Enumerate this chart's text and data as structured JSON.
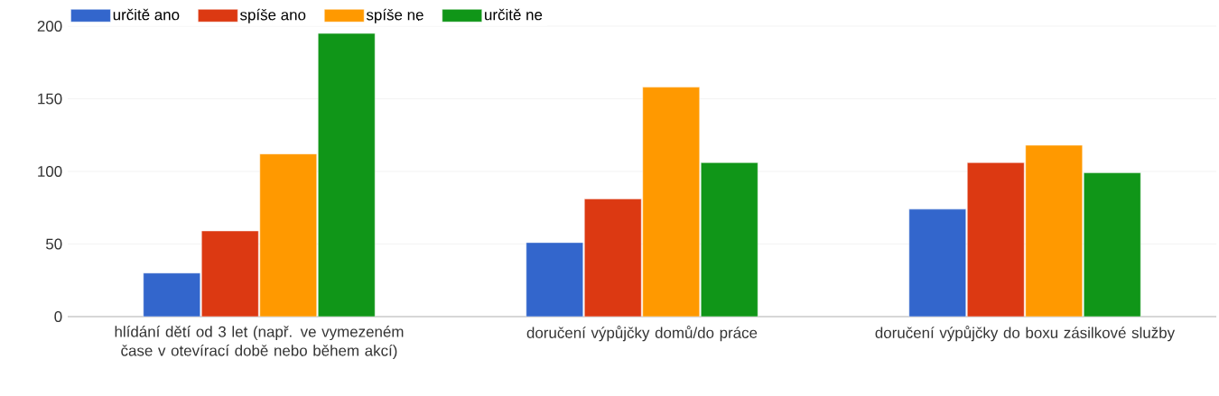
{
  "chart_data": {
    "type": "bar",
    "categories": [
      "hlídání dětí od 3 let (např. ve vymezeném čase v otevírací době nebo během akcí)",
      "doručení výpůjčky domů/do práce",
      "doručení výpůjčky do boxu zásilkové služby"
    ],
    "series": [
      {
        "name": "určitě ano",
        "color": "#3366cc",
        "values": [
          30,
          51,
          74
        ]
      },
      {
        "name": "spíše ano",
        "color": "#dc3912",
        "values": [
          59,
          81,
          106
        ]
      },
      {
        "name": "spíše ne",
        "color": "#ff9900",
        "values": [
          112,
          158,
          118
        ]
      },
      {
        "name": "určitě ne",
        "color": "#109618",
        "values": [
          195,
          106,
          99
        ]
      }
    ],
    "ylim": [
      0,
      200
    ],
    "yticks": [
      0,
      50,
      100,
      150,
      200
    ],
    "grid": "y",
    "legend": "top left"
  }
}
